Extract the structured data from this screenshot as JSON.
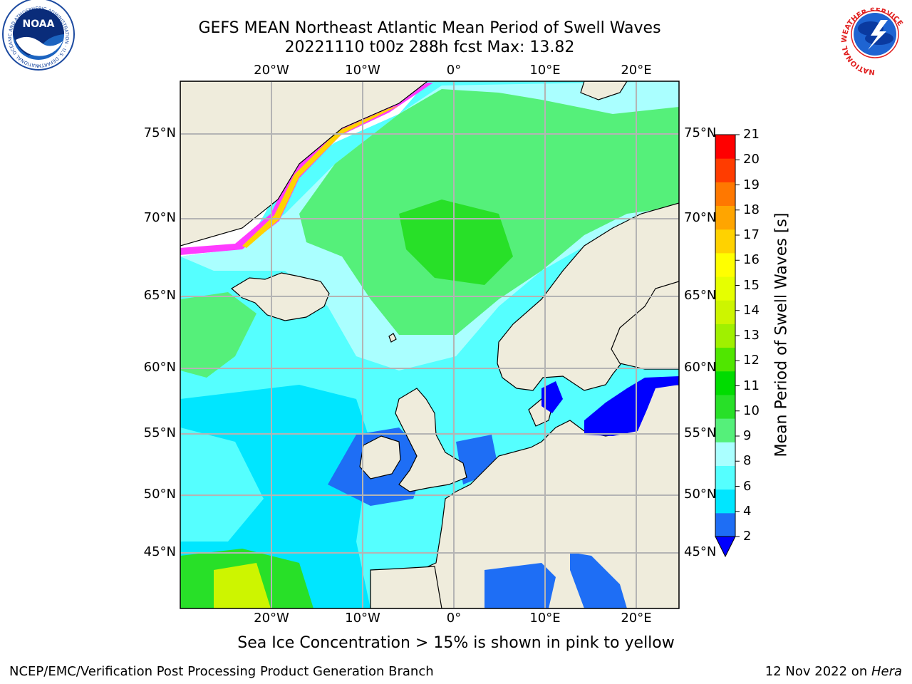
{
  "title": {
    "line1": "GEFS MEAN Northeast Atlantic Mean Period of Swell Waves",
    "line2": "20221110 t00z 288h fcst   Max: 13.82"
  },
  "logos": {
    "noaa": {
      "label": "NOAA",
      "ring_text": "NATIONAL OCEANIC AND ATMOSPHERIC ADMINISTRATION · U.S. DEPARTMENT OF COMMERCE"
    },
    "nws": {
      "ring_text": "NATIONAL WEATHER SERVICE"
    }
  },
  "map": {
    "lon_ticks_top": [
      "20°W",
      "10°W",
      "0°",
      "10°E",
      "20°E"
    ],
    "lon_ticks_bottom": [
      "20°W",
      "10°W",
      "0°",
      "10°E",
      "20°E"
    ],
    "lat_ticks_left": [
      "75°N",
      "70°N",
      "65°N",
      "60°N",
      "55°N",
      "50°N",
      "45°N"
    ],
    "lat_ticks_right": [
      "75°N",
      "70°N",
      "65°N",
      "60°N",
      "55°N",
      "50°N",
      "45°N"
    ],
    "land_color": "#efecdc",
    "grid_color": "#b4b4b4"
  },
  "colorbar": {
    "label": "Mean Period of Swell Waves [s]",
    "ticks": [
      "2",
      "4",
      "6",
      "8",
      "9",
      "10",
      "11",
      "12",
      "13",
      "14",
      "15",
      "16",
      "17",
      "18",
      "19",
      "20",
      "21"
    ],
    "colors": [
      "#1e6ef5",
      "#00e6ff",
      "#55ffff",
      "#aaffff",
      "#55f07a",
      "#28e028",
      "#00dc00",
      "#50e600",
      "#a0f000",
      "#cdf500",
      "#e6ff00",
      "#ffff00",
      "#ffd200",
      "#ffa500",
      "#ff7800",
      "#ff3c00",
      "#ff0000"
    ],
    "under_color": "#0000ff"
  },
  "caption": "Sea Ice Concentration > 15% is shown in pink to yellow",
  "footer": {
    "left": "NCEP/EMC/Verification Post Processing Product Generation Branch",
    "right_prefix": "12 Nov 2022 on ",
    "right_host": "Hera"
  }
}
